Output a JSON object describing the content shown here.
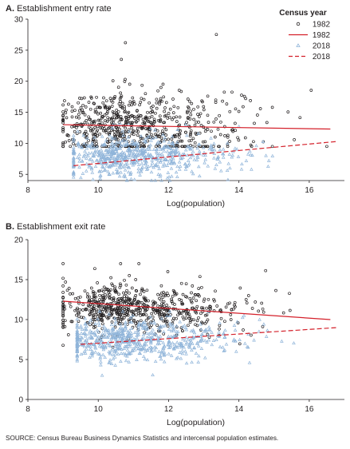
{
  "chart_data": [
    {
      "type": "scatter",
      "title": "Establishment entry rate",
      "panel_letter": "A.",
      "xlabel": "Log(population)",
      "ylabel": "",
      "xlim": [
        8,
        17
      ],
      "ylim": [
        4,
        30
      ],
      "x_ticks": [
        8,
        10,
        12,
        14,
        16
      ],
      "y_ticks": [
        5,
        10,
        15,
        20,
        25,
        30
      ],
      "grid": false,
      "legend": {
        "title": "Census year",
        "placement": "top-right",
        "entries": [
          {
            "label": "1982",
            "kind": "marker",
            "marker": "circle",
            "color": "#231f20"
          },
          {
            "label": "1982",
            "kind": "line",
            "style": "solid",
            "color": "#d4202a"
          },
          {
            "label": "2018",
            "kind": "marker",
            "marker": "triangle",
            "color": "#8fb4d9"
          },
          {
            "label": "2018",
            "kind": "line",
            "style": "dashed",
            "color": "#d4202a"
          }
        ]
      },
      "series": [
        {
          "name": "1982",
          "kind": "points",
          "marker": "circle",
          "color": "#231f20",
          "count": 650,
          "x_center": 10.9,
          "x_sd": 1.0,
          "x_range": [
            9.0,
            16.5
          ],
          "y_center": 13.0,
          "y_sd": 2.7,
          "y_range": [
            9.5,
            28.0
          ]
        },
        {
          "name": "2018",
          "kind": "points",
          "marker": "triangle",
          "color": "#8fb4d9",
          "count": 650,
          "x_center": 10.9,
          "x_sd": 1.0,
          "x_range": [
            9.3,
            16.8
          ],
          "y_center": 7.8,
          "y_sd": 1.6,
          "y_range": [
            4.0,
            13.0
          ]
        },
        {
          "name": "1982",
          "kind": "fit",
          "style": "solid",
          "color": "#d4202a",
          "x": [
            9.0,
            16.6
          ],
          "y": [
            13.0,
            12.3
          ]
        },
        {
          "name": "2018",
          "kind": "fit",
          "style": "dashed",
          "color": "#d4202a",
          "x": [
            9.3,
            16.8
          ],
          "y": [
            6.4,
            10.3
          ]
        }
      ]
    },
    {
      "type": "scatter",
      "title": "Establishment exit rate",
      "panel_letter": "B.",
      "xlabel": "Log(population)",
      "ylabel": "",
      "xlim": [
        8,
        17
      ],
      "ylim": [
        0,
        20
      ],
      "x_ticks": [
        8,
        10,
        12,
        14,
        16
      ],
      "y_ticks": [
        0,
        5,
        10,
        15,
        20
      ],
      "grid": false,
      "series": [
        {
          "name": "1982",
          "kind": "points",
          "marker": "circle",
          "color": "#231f20",
          "count": 650,
          "x_center": 10.9,
          "x_sd": 1.0,
          "x_range": [
            9.0,
            16.6
          ],
          "y_center": 11.4,
          "y_sd": 1.5,
          "y_range": [
            5.0,
            17.0
          ]
        },
        {
          "name": "2018",
          "kind": "points",
          "marker": "triangle",
          "color": "#8fb4d9",
          "count": 650,
          "x_center": 10.9,
          "x_sd": 1.0,
          "x_range": [
            9.4,
            16.8
          ],
          "y_center": 7.4,
          "y_sd": 1.3,
          "y_range": [
            3.0,
            11.0
          ]
        },
        {
          "name": "1982",
          "kind": "fit",
          "style": "solid",
          "color": "#d4202a",
          "x": [
            9.0,
            16.6
          ],
          "y": [
            12.3,
            10.0
          ]
        },
        {
          "name": "2018",
          "kind": "fit",
          "style": "dashed",
          "color": "#d4202a",
          "x": [
            9.5,
            16.8
          ],
          "y": [
            6.9,
            9.0
          ]
        }
      ]
    }
  ],
  "source_note": "SOURCE: Census Bureau Business Dynamics Statistics and intercensal population estimates."
}
